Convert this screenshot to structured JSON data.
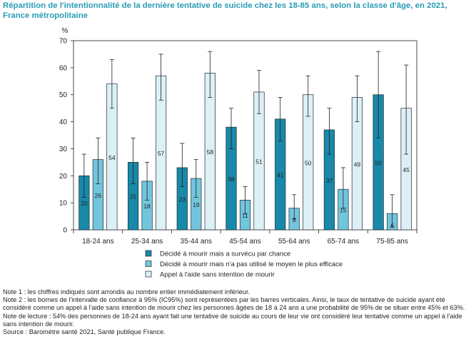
{
  "title": "Répartition de l'intentionnalité de la dernière tentative de suicide chez les 18-85 ans, selon la classe d'âge, en 2021, France métropolitaine",
  "colors": {
    "title": "#2a9bb5",
    "series": [
      "#1889a9",
      "#72c5dd",
      "#dcf0f6"
    ],
    "bar_stroke": "#1f2a30"
  },
  "chart_data": {
    "type": "bar",
    "ylabel": "%",
    "ylim": [
      0,
      70
    ],
    "yticks": [
      0,
      10,
      20,
      30,
      40,
      50,
      60,
      70
    ],
    "grid": false,
    "legend_position": "bottom",
    "categories": [
      "18-24 ans",
      "25-34 ans",
      "35-44 ans",
      "45-54 ans",
      "55-64 ans",
      "65-74 ans",
      "75-85 ans"
    ],
    "series": [
      {
        "name": "Décidé à mourir mais a survécu par chance",
        "values": [
          20,
          25,
          23,
          38,
          41,
          37,
          50
        ],
        "labels": [
          "20",
          "25",
          "23",
          "38",
          "41",
          "37",
          "50"
        ],
        "ci": [
          [
            12,
            28
          ],
          [
            17,
            34
          ],
          [
            16,
            32
          ],
          [
            30,
            45
          ],
          [
            33,
            49
          ],
          [
            28,
            45
          ],
          [
            34,
            66
          ]
        ]
      },
      {
        "name": "Décidé à mourir mais n'a pas utilisé le moyen le plus efficace",
        "values": [
          26,
          18,
          19,
          11,
          8,
          15,
          6
        ],
        "labels": [
          "26",
          "18",
          "19",
          "11",
          "8",
          "15",
          "6"
        ],
        "ci": [
          [
            17,
            34
          ],
          [
            11,
            25
          ],
          [
            12,
            26
          ],
          [
            6,
            16
          ],
          [
            4,
            13
          ],
          [
            8,
            23
          ],
          [
            1,
            13
          ]
        ]
      },
      {
        "name": "Appel à l'aide sans intention de mourir",
        "values": [
          54,
          57,
          58,
          51,
          50,
          49,
          45
        ],
        "labels": [
          "54",
          "57",
          "58",
          "51",
          "50",
          "49",
          "45"
        ],
        "ci": [
          [
            45,
            63
          ],
          [
            48,
            65
          ],
          [
            49,
            66
          ],
          [
            43,
            59
          ],
          [
            42,
            57
          ],
          [
            40,
            57
          ],
          [
            28,
            61
          ]
        ]
      }
    ]
  },
  "notes": [
    "Note 1 : les chiffres indiqués sont arrondis au nombre entier immédiatement inférieur.",
    "Note 2 : les bornes de l'intervalle de confiance à 95% (IC95%) sont représentées par les barres verticales. Ainsi, le taux de tentative de suicide ayant été considéré comme un appel à l'aide sans intention de mourir chez les personnes âgées de 18 à 24 ans a une probabilité de 95% de se situer entre 45% et 63%.",
    "Note de lecture : 54% des personnes de 18-24 ans ayant fait une tentative de suicide au cours de leur vie ont considéré leur tentative comme un appel à l'aide sans intention de mourir.",
    "Source : Baromètre santé 2021, Santé publique France."
  ]
}
